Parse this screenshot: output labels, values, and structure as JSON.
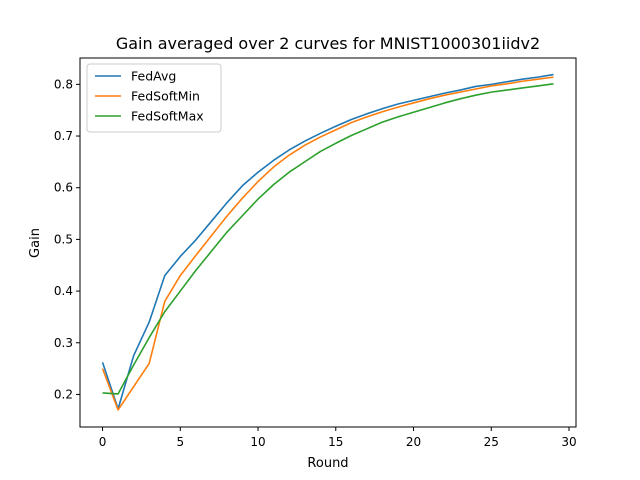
{
  "chart_data": {
    "type": "line",
    "title": "Gain averaged over 2 curves for MNIST1000301iidv2",
    "xlabel": "Round",
    "ylabel": "Gain",
    "xlim": [
      -1.45,
      30.45
    ],
    "ylim": [
      0.137,
      0.851
    ],
    "xticks": [
      0,
      5,
      10,
      15,
      20,
      25,
      30
    ],
    "yticks": [
      0.2,
      0.3,
      0.4,
      0.5,
      0.6,
      0.7,
      0.8
    ],
    "grid": false,
    "legend_position": "top-left",
    "x": [
      0,
      1,
      2,
      3,
      4,
      5,
      6,
      7,
      8,
      9,
      10,
      11,
      12,
      13,
      14,
      15,
      16,
      17,
      18,
      19,
      20,
      21,
      22,
      23,
      24,
      25,
      26,
      27,
      28,
      29
    ],
    "series": [
      {
        "name": "FedAvg",
        "color": "#1f77b4",
        "values": [
          0.262,
          0.172,
          0.275,
          0.34,
          0.43,
          0.467,
          0.499,
          0.535,
          0.571,
          0.604,
          0.63,
          0.653,
          0.673,
          0.69,
          0.705,
          0.719,
          0.732,
          0.743,
          0.753,
          0.762,
          0.769,
          0.776,
          0.783,
          0.789,
          0.796,
          0.8,
          0.805,
          0.81,
          0.814,
          0.819
        ]
      },
      {
        "name": "FedSoftMin",
        "color": "#ff7f0e",
        "values": [
          0.25,
          0.17,
          0.215,
          0.26,
          0.38,
          0.43,
          0.469,
          0.507,
          0.545,
          0.58,
          0.612,
          0.64,
          0.663,
          0.682,
          0.698,
          0.712,
          0.726,
          0.737,
          0.747,
          0.756,
          0.764,
          0.772,
          0.779,
          0.785,
          0.791,
          0.797,
          0.801,
          0.806,
          0.81,
          0.814
        ]
      },
      {
        "name": "FedSoftMax",
        "color": "#2ca02c",
        "values": [
          0.203,
          0.201,
          0.257,
          0.31,
          0.36,
          0.4,
          0.44,
          0.477,
          0.514,
          0.546,
          0.578,
          0.606,
          0.63,
          0.65,
          0.67,
          0.686,
          0.701,
          0.714,
          0.727,
          0.737,
          0.746,
          0.755,
          0.764,
          0.772,
          0.779,
          0.785,
          0.789,
          0.793,
          0.797,
          0.801
        ]
      }
    ]
  }
}
